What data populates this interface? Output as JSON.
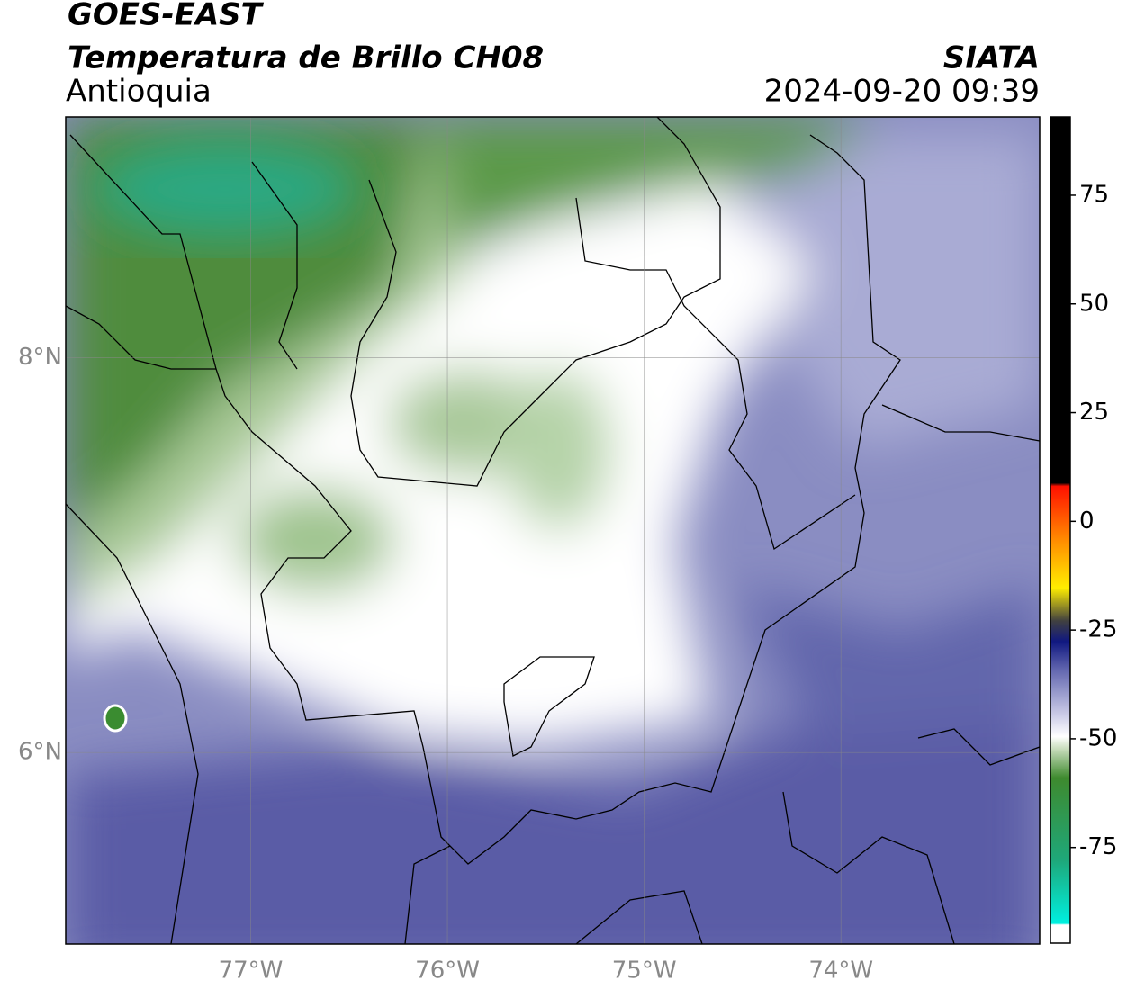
{
  "header": {
    "title": "GOES-EAST",
    "subtitle": "Temperatura de Brillo CH08",
    "region": "Antioquia",
    "source": "SIATA",
    "datetime": "2024-09-20 09:39"
  },
  "map": {
    "xlim": [
      -77.94,
      -72.99
    ],
    "ylim": [
      5.03,
      9.22
    ],
    "xticks": [
      {
        "value": -77,
        "label": "77°W"
      },
      {
        "value": -76,
        "label": "76°W"
      },
      {
        "value": -75,
        "label": "75°W"
      },
      {
        "value": -74,
        "label": "74°W"
      }
    ],
    "yticks": [
      {
        "value": 6,
        "label": "6°N"
      },
      {
        "value": 8,
        "label": "8°N"
      }
    ],
    "grid": true
  },
  "colorbar": {
    "clim": [
      -97,
      93
    ],
    "ticks": [
      -75,
      -50,
      -25,
      0,
      25,
      50,
      75
    ]
  }
}
